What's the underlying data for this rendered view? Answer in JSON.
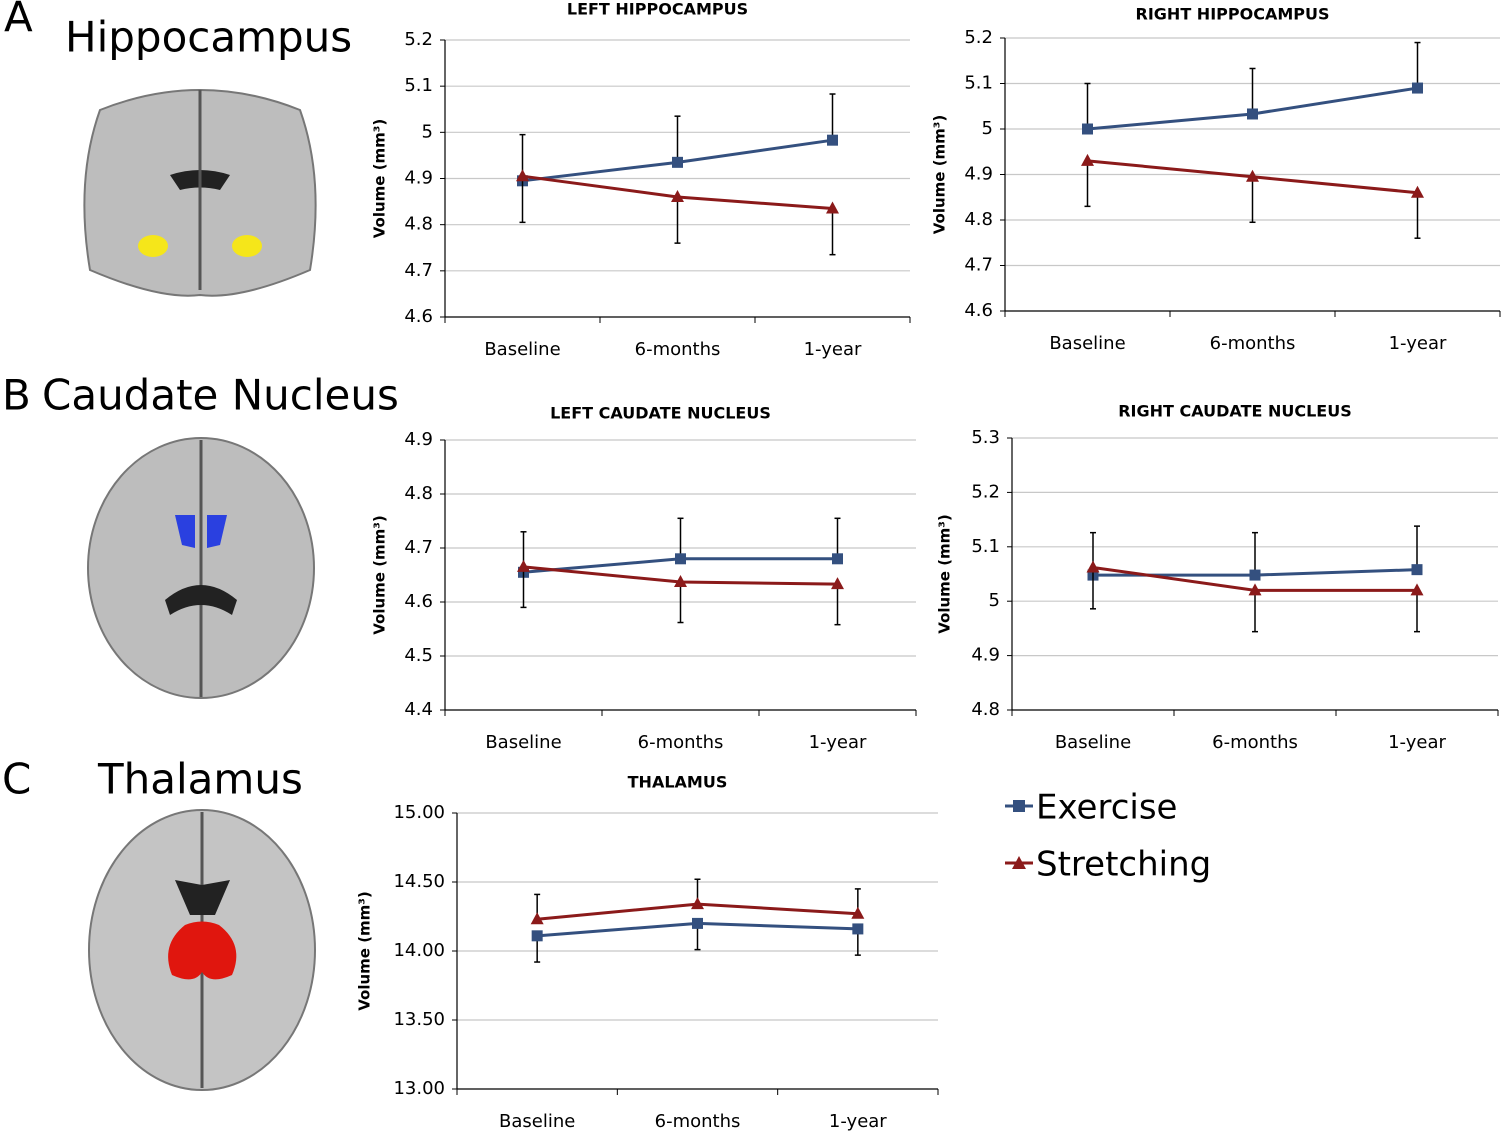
{
  "panels": [
    {
      "letter": "A",
      "title": "Hippocampus"
    },
    {
      "letter": "B",
      "title": "Caudate Nucleus"
    },
    {
      "letter": "C",
      "title": "Thalamus"
    }
  ],
  "chart_data": [
    {
      "type": "line",
      "title": "LEFT HIPPOCAMPUS",
      "ylabel": "Volume (mm³)",
      "categories": [
        "Baseline",
        "6-months",
        "1-year"
      ],
      "ylim": [
        4.6,
        5.2
      ],
      "yticks": [
        4.6,
        4.7,
        4.8,
        4.9,
        5,
        5.1,
        5.2
      ],
      "grid": true,
      "series": [
        {
          "name": "Exercise",
          "color": "#34507f",
          "marker": "square",
          "error_direction": "up",
          "values": [
            4.895,
            4.935,
            4.983
          ],
          "errors": [
            0.1,
            0.1,
            0.1
          ]
        },
        {
          "name": "Stretching",
          "color": "#8b1a1a",
          "marker": "triangle",
          "error_direction": "down",
          "values": [
            4.905,
            4.86,
            4.835
          ],
          "errors": [
            0.1,
            0.1,
            0.1
          ]
        }
      ]
    },
    {
      "type": "line",
      "title": "RIGHT HIPPOCAMPUS",
      "ylabel": "Volume (mm³)",
      "categories": [
        "Baseline",
        "6-months",
        "1-year"
      ],
      "ylim": [
        4.6,
        5.2
      ],
      "yticks": [
        4.6,
        4.7,
        4.8,
        4.9,
        5,
        5.1,
        5.2
      ],
      "grid": true,
      "series": [
        {
          "name": "Exercise",
          "color": "#34507f",
          "marker": "square",
          "error_direction": "up",
          "values": [
            5.0,
            5.033,
            5.09
          ],
          "errors": [
            0.1,
            0.1,
            0.1
          ]
        },
        {
          "name": "Stretching",
          "color": "#8b1a1a",
          "marker": "triangle",
          "error_direction": "down",
          "values": [
            4.93,
            4.895,
            4.86
          ],
          "errors": [
            0.1,
            0.1,
            0.1
          ]
        }
      ]
    },
    {
      "type": "line",
      "title": "LEFT CAUDATE NUCLEUS",
      "ylabel": "Volume (mm³)",
      "categories": [
        "Baseline",
        "6-months",
        "1-year"
      ],
      "ylim": [
        4.4,
        4.9
      ],
      "yticks": [
        4.4,
        4.5,
        4.6,
        4.7,
        4.8,
        4.9
      ],
      "grid": true,
      "series": [
        {
          "name": "Exercise",
          "color": "#34507f",
          "marker": "square",
          "error_direction": "up",
          "values": [
            4.655,
            4.68,
            4.68
          ],
          "errors": [
            0.075,
            0.075,
            0.075
          ]
        },
        {
          "name": "Stretching",
          "color": "#8b1a1a",
          "marker": "triangle",
          "error_direction": "down",
          "values": [
            4.665,
            4.637,
            4.633
          ],
          "errors": [
            0.075,
            0.075,
            0.075
          ]
        }
      ]
    },
    {
      "type": "line",
      "title": "RIGHT CAUDATE NUCLEUS",
      "ylabel": "Volume (mm³)",
      "categories": [
        "Baseline",
        "6-months",
        "1-year"
      ],
      "ylim": [
        4.8,
        5.3
      ],
      "yticks": [
        4.8,
        4.9,
        5,
        5.1,
        5.2,
        5.3
      ],
      "grid": true,
      "series": [
        {
          "name": "Exercise",
          "color": "#34507f",
          "marker": "square",
          "error_direction": "up",
          "values": [
            5.048,
            5.048,
            5.058
          ],
          "errors": [
            0.078,
            0.078,
            0.08
          ]
        },
        {
          "name": "Stretching",
          "color": "#8b1a1a",
          "marker": "triangle",
          "error_direction": "down",
          "values": [
            5.062,
            5.02,
            5.02
          ],
          "errors": [
            0.076,
            0.076,
            0.076
          ]
        }
      ]
    },
    {
      "type": "line",
      "title": "THALAMUS",
      "ylabel": "Volume (mm³)",
      "categories": [
        "Baseline",
        "6-months",
        "1-year"
      ],
      "ylim": [
        13,
        15
      ],
      "yticks": [
        {
          "value": 13,
          "label": "13.00"
        },
        {
          "value": 13.5,
          "label": "13.50"
        },
        {
          "value": 14,
          "label": "14.00"
        },
        {
          "value": 14.5,
          "label": "14.50"
        },
        {
          "value": 15,
          "label": "15.00"
        }
      ],
      "grid": true,
      "series": [
        {
          "name": "Exercise",
          "color": "#34507f",
          "marker": "square",
          "error_direction": "down",
          "values": [
            14.11,
            14.2,
            14.16
          ],
          "errors": [
            0.19,
            0.19,
            0.19
          ]
        },
        {
          "name": "Stretching",
          "color": "#8b1a1a",
          "marker": "triangle",
          "error_direction": "up",
          "values": [
            14.23,
            14.34,
            14.27
          ],
          "errors": [
            0.18,
            0.18,
            0.18
          ]
        }
      ]
    }
  ]
}
